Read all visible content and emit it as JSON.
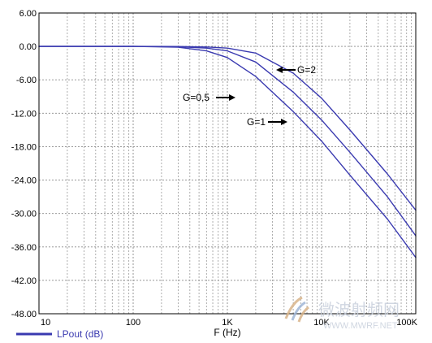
{
  "chart_data": {
    "type": "line",
    "xscale": "log",
    "xlim": [
      10,
      100000
    ],
    "ylim": [
      -48,
      6
    ],
    "xlabel": "F (Hz)",
    "ylabel": "",
    "xticks": [
      "10",
      "100",
      "1K",
      "10K",
      "100K"
    ],
    "yticks": [
      "6.00",
      "0.00",
      "-6.00",
      "-12.00",
      "-18.00",
      "-24.00",
      "-30.00",
      "-36.00",
      "-42.00",
      "-48.00"
    ],
    "grid": true,
    "legend": {
      "position": "bottom-left",
      "label": "LPout (dB)"
    },
    "line_color": "#3a3ab0",
    "series": [
      {
        "name": "G=0,5",
        "x": [
          10,
          100,
          300,
          600,
          1000,
          2000,
          5000,
          10000,
          20000,
          50000,
          100000
        ],
        "y": [
          0,
          0,
          -0.15,
          -0.8,
          -2.0,
          -5.4,
          -11.7,
          -17.0,
          -23.1,
          -31.0,
          -37.9
        ]
      },
      {
        "name": "G=1",
        "x": [
          10,
          100,
          300,
          600,
          1000,
          2000,
          5000,
          10000,
          20000,
          50000,
          100000
        ],
        "y": [
          0,
          0,
          -0.05,
          -0.3,
          -0.8,
          -2.8,
          -8.2,
          -13.2,
          -19.0,
          -27.0,
          -34.0
        ]
      },
      {
        "name": "G=2",
        "x": [
          10,
          100,
          300,
          600,
          1000,
          2000,
          5000,
          10000,
          20000,
          50000,
          100000
        ],
        "y": [
          0,
          0,
          -0.02,
          -0.1,
          -0.3,
          -1.2,
          -4.8,
          -9.3,
          -15.0,
          -22.9,
          -29.4
        ]
      }
    ],
    "annotations": [
      {
        "text": "G=2"
      },
      {
        "text": "G=0,5"
      },
      {
        "text": "G=1"
      }
    ]
  },
  "watermark": {
    "cn": "微波射频网",
    "en": "WWW.MWRF.NET"
  }
}
